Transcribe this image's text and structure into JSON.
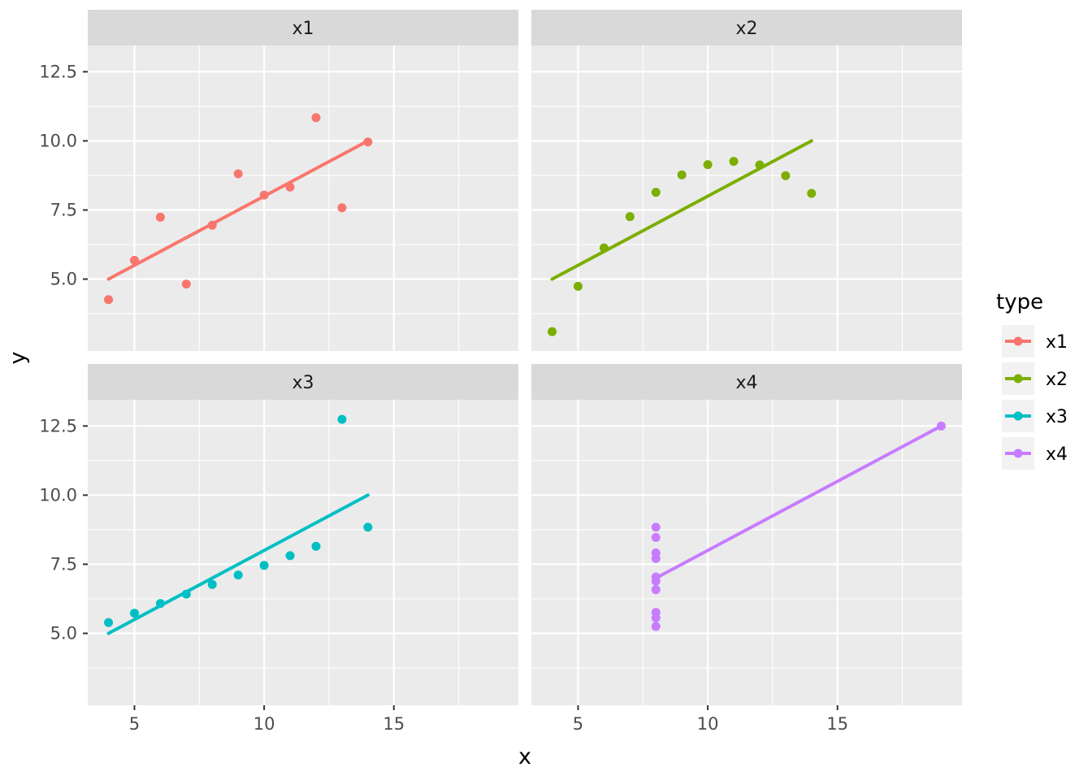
{
  "figure": {
    "background": "#FFFFFF",
    "panel_background": "#EBEBEB",
    "strip_background": "#D9D9D9",
    "strip_text_color": "#1A1A1A",
    "grid_color": "#FFFFFF",
    "tick_text_color": "#4D4D4D",
    "tick_mark_color": "#333333",
    "legend_key_background": "#F2F2F2"
  },
  "chart_data": {
    "type": "scatter",
    "title": "",
    "xlabel": "x",
    "ylabel": "y",
    "xlim": [
      3.2,
      19.8
    ],
    "ylim": [
      2.4,
      13.45
    ],
    "x_ticks": [
      5,
      10,
      15
    ],
    "x_tick_labels": [
      "5",
      "10",
      "15"
    ],
    "y_ticks": [
      5.0,
      7.5,
      10.0,
      12.5
    ],
    "y_tick_labels": [
      "5.0",
      "7.5",
      "10.0",
      "12.5"
    ],
    "x_minor_ticks": [
      7.5,
      12.5,
      17.5
    ],
    "y_minor_ticks": [
      3.75,
      6.25,
      8.75,
      11.25
    ],
    "grid": true,
    "legend": {
      "title": "type",
      "position": "right",
      "entries": [
        {
          "label": "x1",
          "color": "#F8766D"
        },
        {
          "label": "x2",
          "color": "#7CAE00"
        },
        {
          "label": "x3",
          "color": "#00BFC4"
        },
        {
          "label": "x4",
          "color": "#C77CFF"
        }
      ]
    },
    "facets": [
      {
        "label": "x1",
        "series": "x1",
        "color": "#F8766D",
        "points": [
          [
            10,
            8.04
          ],
          [
            8,
            6.95
          ],
          [
            13,
            7.58
          ],
          [
            9,
            8.81
          ],
          [
            11,
            8.33
          ],
          [
            14,
            9.96
          ],
          [
            6,
            7.24
          ],
          [
            4,
            4.26
          ],
          [
            12,
            10.84
          ],
          [
            7,
            4.82
          ],
          [
            5,
            5.68
          ]
        ],
        "fit_line": {
          "x": [
            4,
            14
          ],
          "y": [
            5.0,
            10.0
          ]
        }
      },
      {
        "label": "x2",
        "series": "x2",
        "color": "#7CAE00",
        "points": [
          [
            10,
            9.14
          ],
          [
            8,
            8.14
          ],
          [
            13,
            8.74
          ],
          [
            9,
            8.77
          ],
          [
            11,
            9.26
          ],
          [
            14,
            8.1
          ],
          [
            6,
            6.13
          ],
          [
            4,
            3.1
          ],
          [
            12,
            9.13
          ],
          [
            7,
            7.26
          ],
          [
            5,
            4.74
          ]
        ],
        "fit_line": {
          "x": [
            4,
            14
          ],
          "y": [
            5.0,
            10.0
          ]
        }
      },
      {
        "label": "x3",
        "series": "x3",
        "color": "#00BFC4",
        "points": [
          [
            10,
            7.46
          ],
          [
            8,
            6.77
          ],
          [
            13,
            12.74
          ],
          [
            9,
            7.11
          ],
          [
            11,
            7.81
          ],
          [
            14,
            8.84
          ],
          [
            6,
            6.08
          ],
          [
            4,
            5.39
          ],
          [
            12,
            8.15
          ],
          [
            7,
            6.42
          ],
          [
            5,
            5.73
          ]
        ],
        "fit_line": {
          "x": [
            4,
            14
          ],
          "y": [
            5.0,
            10.0
          ]
        }
      },
      {
        "label": "x4",
        "series": "x4",
        "color": "#C77CFF",
        "points": [
          [
            8,
            6.58
          ],
          [
            8,
            5.76
          ],
          [
            8,
            7.71
          ],
          [
            8,
            8.84
          ],
          [
            8,
            8.47
          ],
          [
            8,
            7.04
          ],
          [
            8,
            5.25
          ],
          [
            19,
            12.5
          ],
          [
            8,
            5.56
          ],
          [
            8,
            7.91
          ],
          [
            8,
            6.89
          ]
        ],
        "fit_line": {
          "x": [
            8,
            19
          ],
          "y": [
            7.0,
            12.5
          ]
        }
      }
    ]
  }
}
